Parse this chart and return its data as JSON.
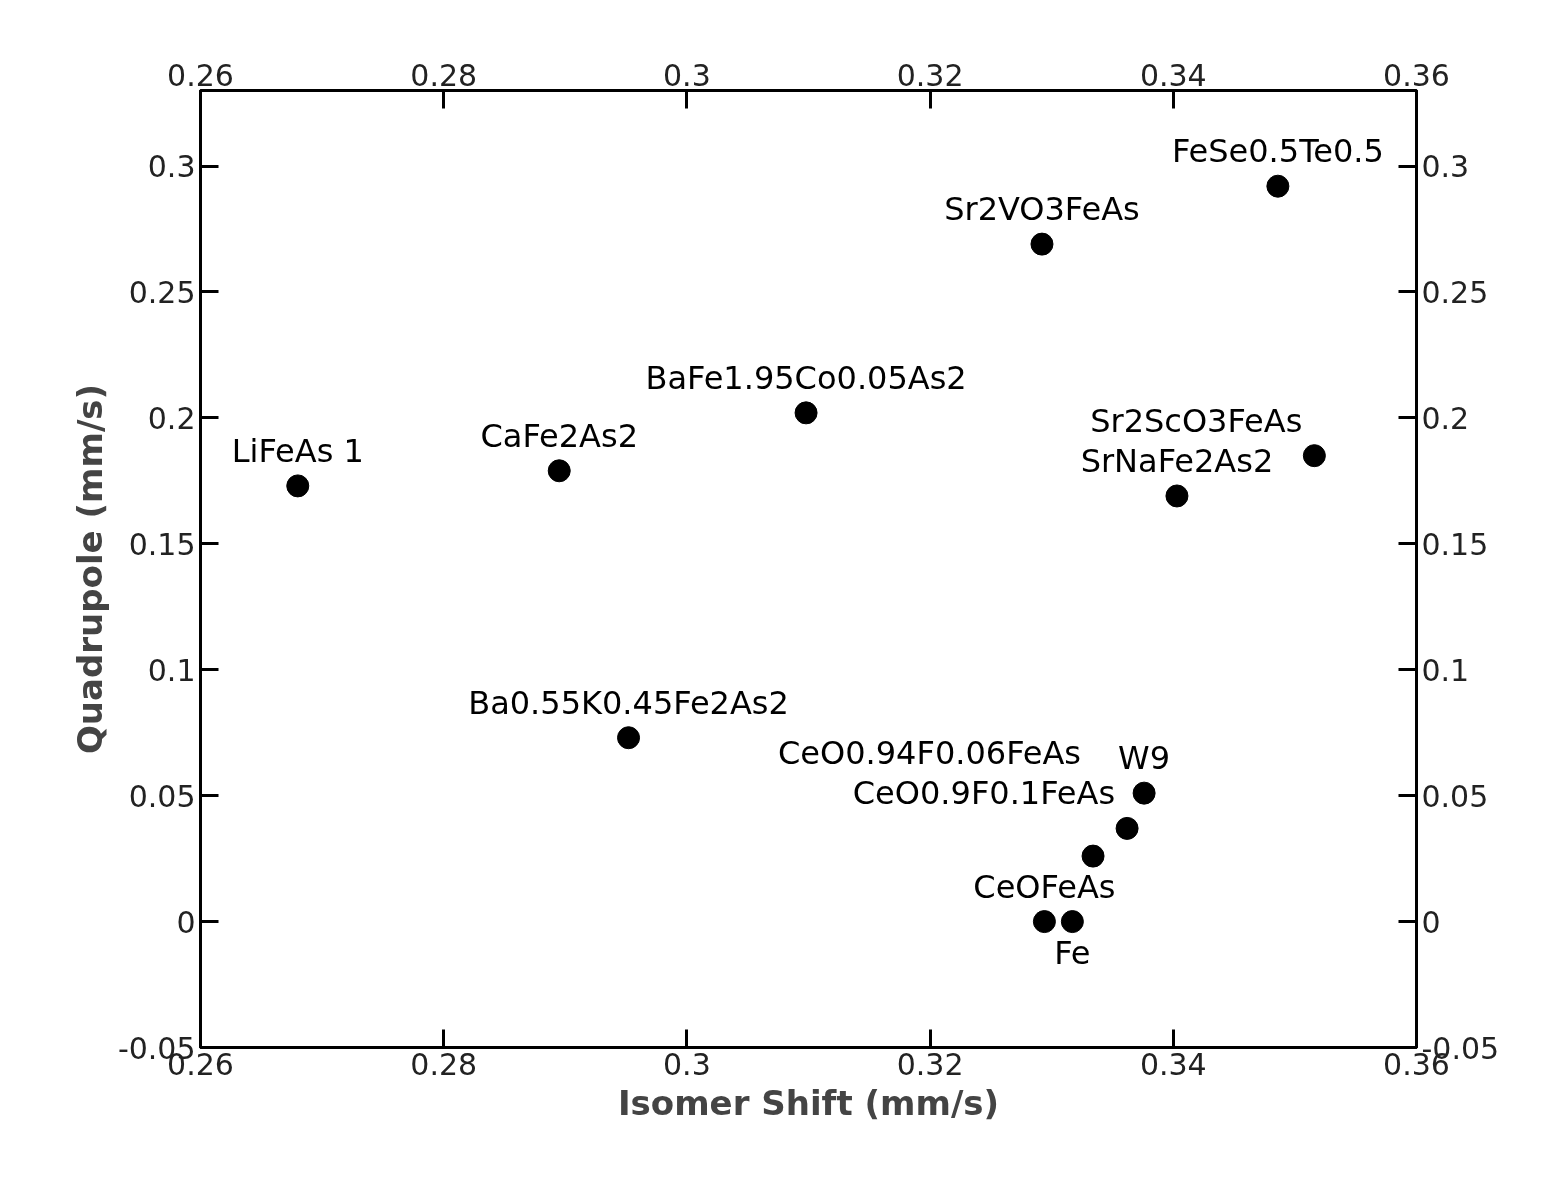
{
  "chart_data": {
    "type": "scatter",
    "xlabel": "Isomer Shift (mm/s)",
    "ylabel": "Quadrupole (mm/s)",
    "x": [
      0.268,
      0.2895,
      0.3098,
      0.2952,
      0.3292,
      0.3486,
      0.3516,
      0.3403,
      0.3376,
      0.3362,
      0.3334,
      0.3294,
      0.3317
    ],
    "series": [
      {
        "color": "#000000",
        "values": [
          0.173,
          0.179,
          0.202,
          0.073,
          0.269,
          0.292,
          0.185,
          0.169,
          0.051,
          0.037,
          0.026,
          0.0,
          0.0
        ]
      }
    ],
    "annotations": [
      {
        "text": "LiFeAs 1",
        "x": 0.268,
        "y": 0.173
      },
      {
        "text": "CaFe2As2",
        "x": 0.2895,
        "y": 0.179
      },
      {
        "text": "BaFe1.95Co0.05As2",
        "x": 0.3098,
        "y": 0.202
      },
      {
        "text": "Ba0.55K0.45Fe2As2",
        "x": 0.2952,
        "y": 0.073
      },
      {
        "text": "Sr2VO3FeAs",
        "x": 0.3292,
        "y": 0.269
      },
      {
        "text": "FeSe0.5Te0.5",
        "x": 0.3486,
        "y": 0.292
      },
      {
        "text": "Sr2ScO3FeAs",
        "x": 0.3516,
        "y": 0.185
      },
      {
        "text": "SrNaFe2As2",
        "x": 0.3403,
        "y": 0.169
      },
      {
        "text": "W9",
        "x": 0.3376,
        "y": 0.051
      },
      {
        "text": "CeO0.9F0.1FeAs",
        "x": 0.3362,
        "y": 0.037
      },
      {
        "text": "CeO0.94F0.06FeAs",
        "x": 0.3334,
        "y": 0.026
      },
      {
        "text": "CeOFeAs",
        "x": 0.3294,
        "y": 0.0
      },
      {
        "text": "Fe",
        "x": 0.3317,
        "y": 0.0
      }
    ],
    "marker": "circle",
    "grid": false,
    "xlim": [
      0.26,
      0.36
    ],
    "xticks": [
      0.26,
      0.28,
      0.3,
      0.32,
      0.34,
      0.36
    ],
    "x2lim": [
      0.26,
      0.36
    ],
    "x2ticks": [
      0.26,
      0.28,
      0.3,
      0.32,
      0.34,
      0.36
    ],
    "ylim": [
      -0.05,
      0.33
    ],
    "yticks": [
      -0.05,
      0,
      0.05,
      0.1,
      0.15,
      0.2,
      0.25,
      0.3
    ],
    "y2lim": [
      -0.05,
      0.33
    ],
    "y2ticks": [
      -0.05,
      0,
      0.05,
      0.1,
      0.15,
      0.2,
      0.25,
      0.3
    ]
  }
}
